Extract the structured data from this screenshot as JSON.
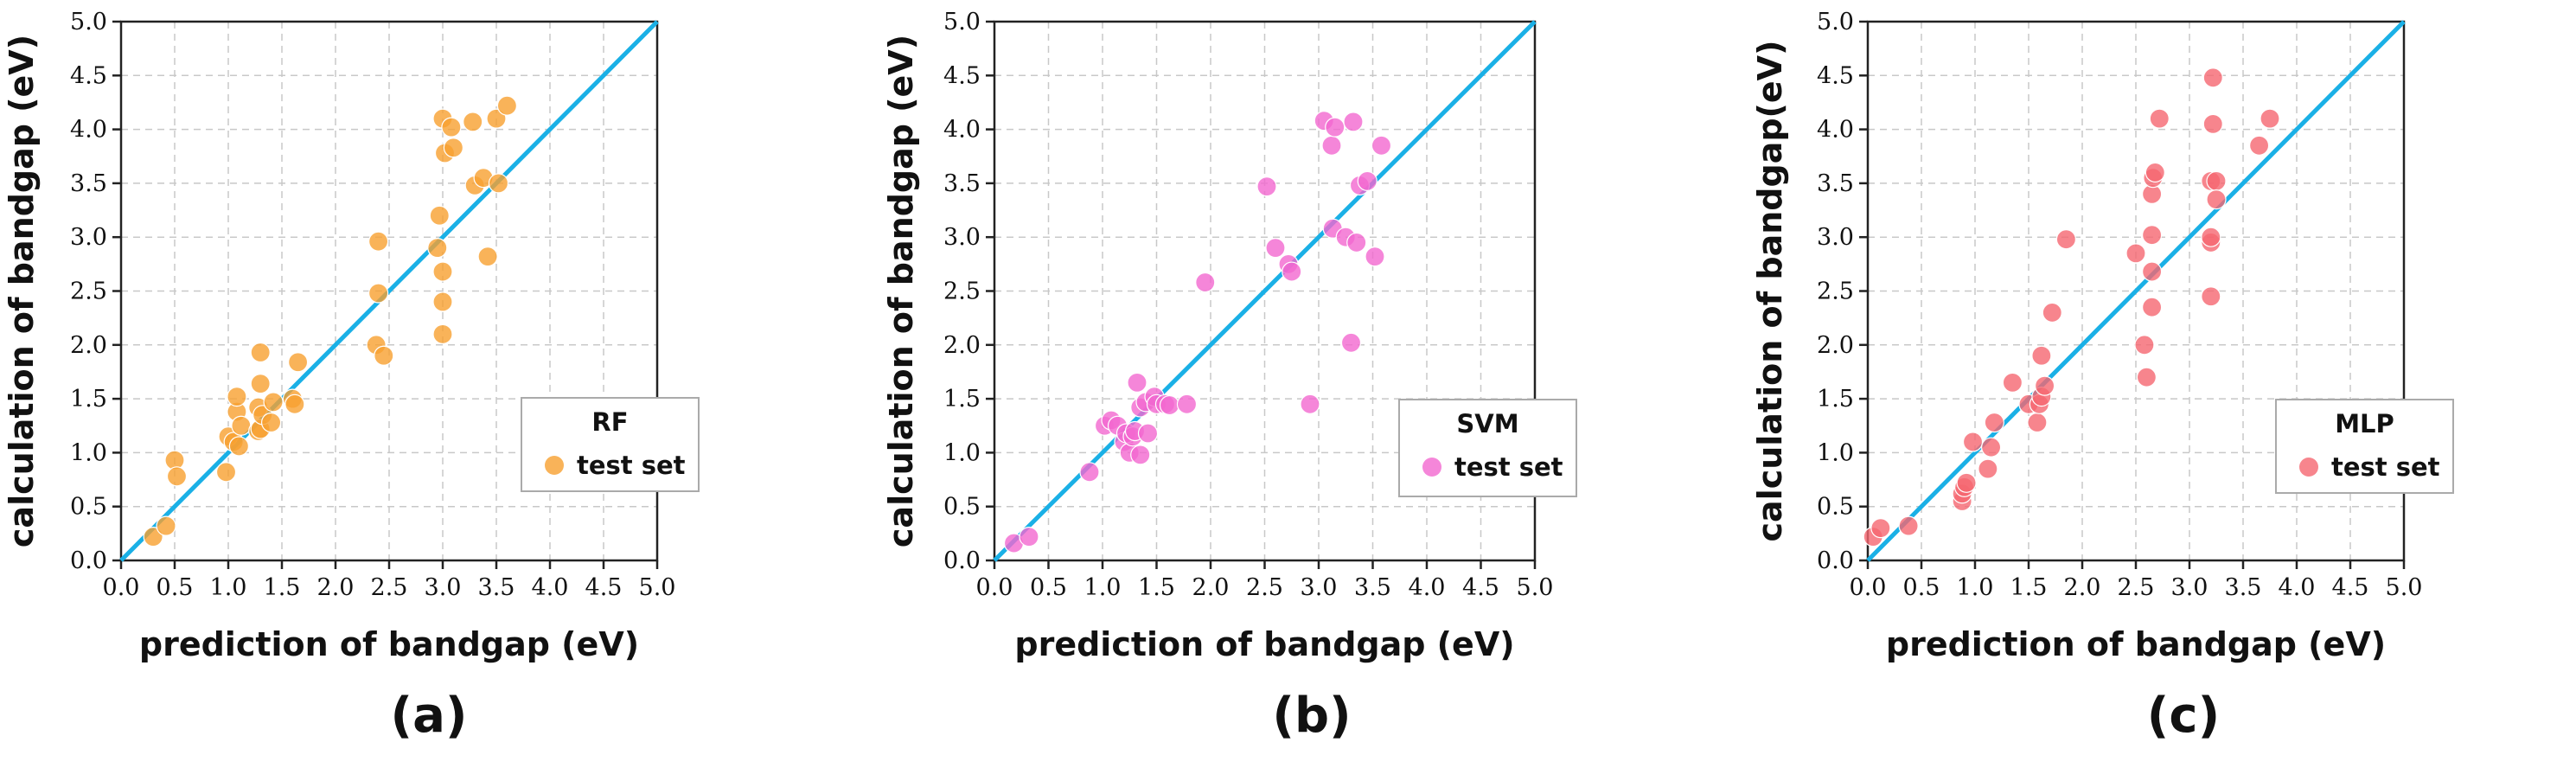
{
  "chart_data": [
    {
      "type": "scatter",
      "panel_label": "(a)",
      "xlabel": "prediction of bandgap  (eV)",
      "ylabel": "calculation of bandgap  (eV)",
      "xlim": [
        0,
        5
      ],
      "ylim": [
        0,
        5
      ],
      "xticks": [
        "0.0",
        "0.5",
        "1.0",
        "1.5",
        "2.0",
        "2.5",
        "3.0",
        "3.5",
        "4.0",
        "4.5",
        "5.0"
      ],
      "yticks": [
        "0.0",
        "0.5",
        "1.0",
        "1.5",
        "2.0",
        "2.5",
        "3.0",
        "3.5",
        "4.0",
        "4.5",
        "5.0"
      ],
      "grid": true,
      "legend_position": "right-middle",
      "legend_title": "RF",
      "series": [
        {
          "name": "test set",
          "color": "#F7A030",
          "points": [
            [
              0.3,
              0.22
            ],
            [
              0.42,
              0.32
            ],
            [
              0.5,
              0.93
            ],
            [
              0.52,
              0.78
            ],
            [
              0.98,
              0.82
            ],
            [
              1.0,
              1.15
            ],
            [
              1.05,
              1.1
            ],
            [
              1.08,
              1.38
            ],
            [
              1.08,
              1.52
            ],
            [
              1.1,
              1.06
            ],
            [
              1.12,
              1.25
            ],
            [
              1.28,
              1.2
            ],
            [
              1.28,
              1.42
            ],
            [
              1.3,
              1.22
            ],
            [
              1.3,
              1.64
            ],
            [
              1.3,
              1.93
            ],
            [
              1.32,
              1.35
            ],
            [
              1.4,
              1.28
            ],
            [
              1.42,
              1.47
            ],
            [
              1.6,
              1.5
            ],
            [
              1.62,
              1.45
            ],
            [
              1.65,
              1.84
            ],
            [
              2.38,
              2.0
            ],
            [
              2.4,
              2.48
            ],
            [
              2.4,
              2.96
            ],
            [
              2.45,
              1.9
            ],
            [
              2.95,
              2.9
            ],
            [
              2.97,
              3.2
            ],
            [
              3.0,
              2.68
            ],
            [
              3.0,
              2.4
            ],
            [
              3.0,
              2.1
            ],
            [
              3.0,
              4.1
            ],
            [
              3.02,
              3.78
            ],
            [
              3.08,
              4.02
            ],
            [
              3.1,
              3.83
            ],
            [
              3.28,
              4.07
            ],
            [
              3.3,
              3.48
            ],
            [
              3.38,
              3.55
            ],
            [
              3.42,
              2.82
            ],
            [
              3.5,
              4.1
            ],
            [
              3.52,
              3.5
            ],
            [
              3.6,
              4.22
            ]
          ]
        }
      ],
      "fit_line": {
        "from": [
          0,
          0
        ],
        "to": [
          5,
          5
        ],
        "color": "#1AB0E6"
      }
    },
    {
      "type": "scatter",
      "panel_label": "(b)",
      "xlabel": "prediction of bandgap (eV)",
      "ylabel": "calculation of bandgap  (eV)",
      "xlim": [
        0,
        5
      ],
      "ylim": [
        0,
        5
      ],
      "xticks": [
        "0.0",
        "0.5",
        "1.0",
        "1.5",
        "2.0",
        "2.5",
        "3.0",
        "3.5",
        "4.0",
        "4.5",
        "5.0"
      ],
      "yticks": [
        "0.0",
        "0.5",
        "1.0",
        "1.5",
        "2.0",
        "2.5",
        "3.0",
        "3.5",
        "4.0",
        "4.5",
        "5.0"
      ],
      "grid": true,
      "legend_position": "right-middle",
      "legend_title": "SVM",
      "series": [
        {
          "name": "test set",
          "color": "#F268CF",
          "points": [
            [
              0.18,
              0.16
            ],
            [
              0.32,
              0.22
            ],
            [
              0.88,
              0.82
            ],
            [
              1.02,
              1.25
            ],
            [
              1.08,
              1.3
            ],
            [
              1.14,
              1.25
            ],
            [
              1.2,
              1.1
            ],
            [
              1.22,
              1.18
            ],
            [
              1.25,
              1.0
            ],
            [
              1.28,
              1.15
            ],
            [
              1.3,
              1.2
            ],
            [
              1.32,
              1.65
            ],
            [
              1.35,
              0.98
            ],
            [
              1.35,
              1.42
            ],
            [
              1.4,
              1.47
            ],
            [
              1.42,
              1.18
            ],
            [
              1.48,
              1.52
            ],
            [
              1.5,
              1.45
            ],
            [
              1.58,
              1.45
            ],
            [
              1.62,
              1.44
            ],
            [
              1.78,
              1.45
            ],
            [
              1.95,
              2.58
            ],
            [
              2.52,
              3.47
            ],
            [
              2.6,
              2.9
            ],
            [
              2.72,
              2.75
            ],
            [
              2.75,
              2.68
            ],
            [
              2.92,
              1.45
            ],
            [
              3.05,
              4.08
            ],
            [
              3.12,
              3.85
            ],
            [
              3.13,
              3.08
            ],
            [
              3.15,
              4.02
            ],
            [
              3.25,
              3.0
            ],
            [
              3.3,
              2.02
            ],
            [
              3.32,
              4.07
            ],
            [
              3.35,
              2.95
            ],
            [
              3.38,
              3.48
            ],
            [
              3.45,
              3.52
            ],
            [
              3.52,
              2.82
            ],
            [
              3.58,
              3.85
            ]
          ]
        }
      ],
      "fit_line": {
        "from": [
          0,
          0
        ],
        "to": [
          5,
          5
        ],
        "color": "#1AB0E6"
      }
    },
    {
      "type": "scatter",
      "panel_label": "(c)",
      "xlabel": "prediction of bandgap  (eV)",
      "ylabel": "calculation of bandgap(eV)",
      "xlim": [
        0,
        5
      ],
      "ylim": [
        0,
        5
      ],
      "xticks": [
        "0.0",
        "0.5",
        "1.0",
        "1.5",
        "2.0",
        "2.5",
        "3.0",
        "3.5",
        "4.0",
        "4.5",
        "5.0"
      ],
      "yticks": [
        "0.0",
        "0.5",
        "1.0",
        "1.5",
        "2.0",
        "2.5",
        "3.0",
        "3.5",
        "4.0",
        "4.5",
        "5.0"
      ],
      "grid": true,
      "legend_position": "right-middle",
      "legend_title": "MLP",
      "series": [
        {
          "name": "test set",
          "color": "#F56670",
          "points": [
            [
              0.05,
              0.22
            ],
            [
              0.12,
              0.3
            ],
            [
              0.38,
              0.32
            ],
            [
              0.88,
              0.55
            ],
            [
              0.88,
              0.62
            ],
            [
              0.9,
              0.68
            ],
            [
              0.92,
              0.72
            ],
            [
              0.98,
              1.1
            ],
            [
              1.12,
              0.85
            ],
            [
              1.15,
              1.05
            ],
            [
              1.18,
              1.28
            ],
            [
              1.35,
              1.65
            ],
            [
              1.5,
              1.45
            ],
            [
              1.58,
              1.28
            ],
            [
              1.6,
              1.45
            ],
            [
              1.62,
              1.52
            ],
            [
              1.62,
              1.9
            ],
            [
              1.65,
              1.62
            ],
            [
              1.72,
              2.3
            ],
            [
              1.85,
              2.98
            ],
            [
              2.5,
              2.85
            ],
            [
              2.58,
              2.0
            ],
            [
              2.6,
              1.7
            ],
            [
              2.65,
              2.35
            ],
            [
              2.65,
              2.68
            ],
            [
              2.65,
              3.02
            ],
            [
              2.65,
              3.4
            ],
            [
              2.66,
              3.55
            ],
            [
              2.68,
              3.6
            ],
            [
              2.72,
              4.1
            ],
            [
              3.2,
              2.45
            ],
            [
              3.2,
              2.95
            ],
            [
              3.2,
              3.0
            ],
            [
              3.2,
              3.52
            ],
            [
              3.22,
              4.05
            ],
            [
              3.22,
              4.48
            ],
            [
              3.25,
              3.52
            ],
            [
              3.25,
              3.35
            ],
            [
              3.65,
              3.85
            ],
            [
              3.75,
              4.1
            ]
          ]
        }
      ],
      "fit_line": {
        "from": [
          0,
          0
        ],
        "to": [
          5,
          5
        ],
        "color": "#1AB0E6"
      }
    }
  ]
}
